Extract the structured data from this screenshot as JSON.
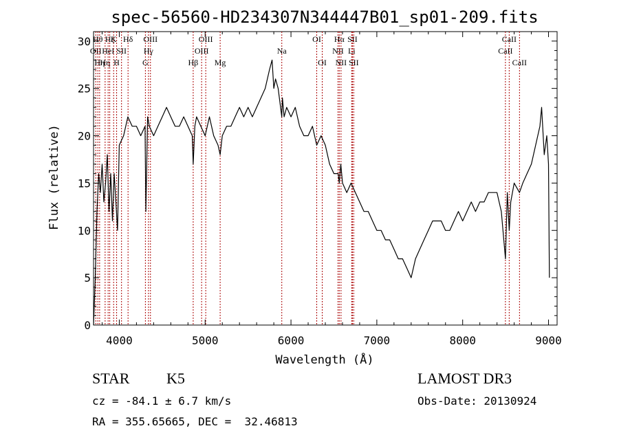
{
  "chart_data": {
    "type": "line",
    "title": "spec-56560-HD234307N344447B01_sp01-209.fits",
    "xlabel": "Wavelength (Å)",
    "ylabel": "Flux (relative)",
    "xlim": [
      3700,
      9100
    ],
    "ylim": [
      0,
      31
    ],
    "x_ticks": [
      "4000",
      "5000",
      "6000",
      "7000",
      "8000",
      "9000"
    ],
    "y_ticks": [
      "0",
      "5",
      "10",
      "15",
      "20",
      "25",
      "30"
    ],
    "grid": false,
    "series": [
      {
        "x": [
          3700,
          3720,
          3740,
          3760,
          3780,
          3800,
          3820,
          3840,
          3860,
          3880,
          3900,
          3920,
          3940,
          3960,
          3980,
          4000,
          4050,
          4100,
          4150,
          4200,
          4250,
          4300,
          4310,
          4330,
          4350,
          4400,
          4450,
          4500,
          4550,
          4600,
          4650,
          4700,
          4750,
          4800,
          4850,
          4861,
          4880,
          4900,
          4950,
          5000,
          5050,
          5100,
          5150,
          5175,
          5200,
          5250,
          5300,
          5350,
          5400,
          5450,
          5500,
          5550,
          5600,
          5650,
          5700,
          5750,
          5780,
          5800,
          5820,
          5850,
          5893,
          5900,
          5920,
          5950,
          6000,
          6050,
          6100,
          6150,
          6200,
          6250,
          6300,
          6350,
          6400,
          6450,
          6500,
          6550,
          6563,
          6580,
          6600,
          6650,
          6700,
          6750,
          6800,
          6850,
          6900,
          6950,
          7000,
          7050,
          7100,
          7150,
          7200,
          7250,
          7300,
          7350,
          7400,
          7450,
          7500,
          7550,
          7600,
          7650,
          7700,
          7750,
          7800,
          7850,
          7900,
          7950,
          8000,
          8050,
          8100,
          8150,
          8200,
          8250,
          8300,
          8350,
          8400,
          8450,
          8498,
          8520,
          8542,
          8560,
          8600,
          8662,
          8700,
          8750,
          8800,
          8850,
          8900,
          8920,
          8950,
          8980,
          9000,
          9010
        ],
        "y": [
          0,
          5,
          12,
          16,
          14,
          17,
          13,
          15,
          18,
          12,
          16,
          11,
          16,
          13,
          10,
          19,
          20,
          22,
          21,
          21,
          20,
          21,
          12,
          22,
          21,
          20,
          21,
          22,
          23,
          22,
          21,
          21,
          22,
          21,
          20,
          17,
          21,
          22,
          21,
          20,
          22,
          20,
          19,
          18,
          20,
          21,
          21,
          22,
          23,
          22,
          23,
          22,
          23,
          24,
          25,
          27,
          28,
          25,
          26,
          25,
          22,
          24,
          22,
          23,
          22,
          23,
          21,
          20,
          20,
          21,
          19,
          20,
          19,
          17,
          16,
          16,
          15,
          17,
          15,
          14,
          15,
          14,
          13,
          12,
          12,
          11,
          10,
          10,
          9,
          9,
          8,
          7,
          7,
          6,
          5,
          7,
          8,
          9,
          10,
          11,
          11,
          11,
          10,
          10,
          11,
          12,
          11,
          12,
          13,
          12,
          13,
          13,
          14,
          14,
          14,
          12,
          7,
          14,
          10,
          13,
          15,
          14,
          15,
          16,
          17,
          19,
          21,
          23,
          18,
          20,
          17,
          5
        ]
      }
    ],
    "line_markers": [
      {
        "x": 3726,
        "label": "OII",
        "row": 2
      },
      {
        "x": 3750,
        "label": "Hθ",
        "row": 1
      },
      {
        "x": 3771,
        "label": "Hη",
        "row": 3
      },
      {
        "x": 3835,
        "label": "Hη",
        "row": 3
      },
      {
        "x": 3870,
        "label": "HeI",
        "row": 2
      },
      {
        "x": 3889,
        "label": "Hζ",
        "row": 1
      },
      {
        "x": 3934,
        "label": "K",
        "row": 1
      },
      {
        "x": 3969,
        "label": "H",
        "row": 3
      },
      {
        "x": 4026,
        "label": "SII",
        "row": 2
      },
      {
        "x": 4102,
        "label": "Hδ",
        "row": 1
      },
      {
        "x": 4304,
        "label": "G",
        "row": 3
      },
      {
        "x": 4340,
        "label": "Hγ",
        "row": 2
      },
      {
        "x": 4363,
        "label": "OIII",
        "row": 1
      },
      {
        "x": 4861,
        "label": "Hβ",
        "row": 3
      },
      {
        "x": 4959,
        "label": "OIII",
        "row": 2
      },
      {
        "x": 5007,
        "label": "OIII",
        "row": 1
      },
      {
        "x": 5175,
        "label": "Mg",
        "row": 3
      },
      {
        "x": 5893,
        "label": "Na",
        "row": 2
      },
      {
        "x": 6300,
        "label": "OI",
        "row": 1
      },
      {
        "x": 6364,
        "label": "OI",
        "row": 3
      },
      {
        "x": 6548,
        "label": "NII",
        "row": 2
      },
      {
        "x": 6563,
        "label": "Hα",
        "row": 1
      },
      {
        "x": 6583,
        "label": "NII",
        "row": 3
      },
      {
        "x": 6707,
        "label": "Li",
        "row": 2
      },
      {
        "x": 6716,
        "label": "SII",
        "row": 1
      },
      {
        "x": 6731,
        "label": "SII",
        "row": 3
      },
      {
        "x": 8498,
        "label": "CaII",
        "row": 2
      },
      {
        "x": 8542,
        "label": "CaII",
        "row": 1
      },
      {
        "x": 8662,
        "label": "CaII",
        "row": 3
      }
    ],
    "marker_color": "#aa0000",
    "line_color": "#000000"
  },
  "info": {
    "class": "STAR",
    "subclass": "K5",
    "survey": "LAMOST DR3",
    "cz": "cz = -84.1 ± 6.7 km/s",
    "obs_date": "Obs-Date: 20130924",
    "coords": "RA = 355.65665, DEC =  32.46813"
  }
}
